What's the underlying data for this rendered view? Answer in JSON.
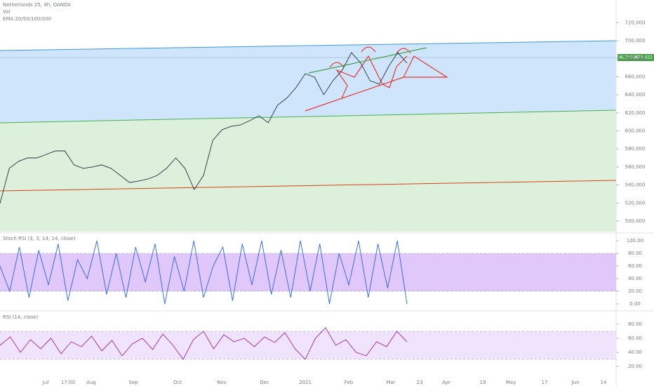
{
  "header": {
    "symbol": "Netherlands 25, 4h, OANDA",
    "volume": "Vol",
    "ema": "EMA 20/50/100/200"
  },
  "price_tag": {
    "symbol": "NL25EUR",
    "price": "679.422"
  },
  "price_chart": {
    "type": "line",
    "color": "#26323f",
    "values": [
      519500,
      558400,
      566200,
      570000,
      570000,
      573900,
      577800,
      577800,
      562300,
      558400,
      560000,
      562300,
      558400,
      550600,
      542800,
      544400,
      546700,
      550600,
      558400,
      570000,
      558400,
      535000,
      550600,
      589500,
      601200,
      605100,
      606600,
      611300,
      616700,
      609000,
      628500,
      636200,
      647900,
      663400,
      659500,
      640100,
      655700,
      667300,
      686800,
      675100,
      655700,
      651800,
      671200,
      686800,
      675100
    ],
    "ylim": [
      488300,
      745100
    ],
    "yticks": [
      {
        "value": 720000,
        "label": "720,000"
      },
      {
        "value": 700000,
        "label": "700,000"
      },
      {
        "value": 680000,
        "label": "680,000"
      },
      {
        "value": 660000,
        "label": "660,000"
      },
      {
        "value": 640000,
        "label": "640,000"
      },
      {
        "value": 620000,
        "label": "620,000"
      },
      {
        "value": 600000,
        "label": "600,000"
      },
      {
        "value": 580000,
        "label": "580,000"
      },
      {
        "value": 560000,
        "label": "560,000"
      },
      {
        "value": 540000,
        "label": "540,000"
      },
      {
        "value": 520000,
        "label": "520,000"
      },
      {
        "value": 500000,
        "label": "500,000"
      }
    ]
  },
  "stoch": {
    "type": "line",
    "title": "Stoch RSI (3, 3, 14, 14, close)",
    "color": "#2962ff",
    "values": [
      60,
      20,
      90,
      10,
      85,
      30,
      95,
      5,
      70,
      40,
      100,
      15,
      80,
      10,
      90,
      35,
      95,
      0,
      75,
      20,
      100,
      10,
      60,
      90,
      5,
      95,
      30,
      100,
      15,
      85,
      10,
      100,
      20,
      95,
      0,
      80,
      30,
      100,
      10,
      95,
      25,
      100,
      0
    ],
    "ylim": [
      -7.8,
      108.9
    ],
    "yticks": [
      {
        "value": 100,
        "label": "100.00"
      },
      {
        "value": 80,
        "label": "80.00"
      },
      {
        "value": 60,
        "label": "60.00"
      },
      {
        "value": 40,
        "label": "40.00"
      },
      {
        "value": 20,
        "label": "20.00"
      },
      {
        "value": 0,
        "label": "0.00"
      }
    ],
    "band": [
      20,
      80
    ],
    "band_color": "#e1c8fa"
  },
  "rsi": {
    "type": "line",
    "title": "RSI (14, close)",
    "color": "#9c27b0",
    "values": [
      50,
      62,
      40,
      58,
      45,
      60,
      38,
      55,
      48,
      63,
      42,
      57,
      35,
      52,
      60,
      44,
      66,
      50,
      30,
      58,
      70,
      45,
      65,
      55,
      60,
      48,
      62,
      54,
      68,
      45,
      30,
      60,
      75,
      50,
      58,
      40,
      35,
      55,
      48,
      70,
      55
    ],
    "ylim": [
      2,
      96
    ],
    "yticks": [
      {
        "value": 80,
        "label": "80.00"
      },
      {
        "value": 60,
        "label": "60.00"
      },
      {
        "value": 40,
        "label": "40.00"
      },
      {
        "value": 20,
        "label": "20.00"
      }
    ],
    "band": [
      30,
      70
    ],
    "band_color": "#f0e3fc"
  },
  "x_axis": [
    "Jul",
    "17:00",
    "Aug",
    "Sep",
    "Oct",
    "Nov",
    "Dec",
    "2021",
    "Feb",
    "Mar",
    "23",
    "Apr",
    "19",
    "May",
    "17",
    "Jun",
    "14"
  ]
}
